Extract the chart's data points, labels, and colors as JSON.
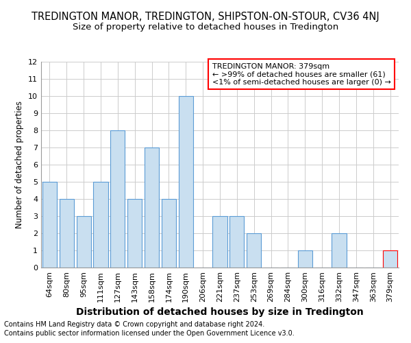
{
  "title": "TREDINGTON MANOR, TREDINGTON, SHIPSTON-ON-STOUR, CV36 4NJ",
  "subtitle": "Size of property relative to detached houses in Tredington",
  "xlabel": "Distribution of detached houses by size in Tredington",
  "ylabel": "Number of detached properties",
  "categories": [
    "64sqm",
    "80sqm",
    "95sqm",
    "111sqm",
    "127sqm",
    "143sqm",
    "158sqm",
    "174sqm",
    "190sqm",
    "206sqm",
    "221sqm",
    "237sqm",
    "253sqm",
    "269sqm",
    "284sqm",
    "300sqm",
    "316sqm",
    "332sqm",
    "347sqm",
    "363sqm",
    "379sqm"
  ],
  "values": [
    5,
    4,
    3,
    5,
    8,
    4,
    7,
    4,
    10,
    0,
    3,
    3,
    2,
    0,
    0,
    1,
    0,
    2,
    0,
    0,
    1
  ],
  "bar_color": "#c9dff0",
  "bar_edge_color": "#5b9bd5",
  "highlight_index": 20,
  "highlight_bar_edge_color": "#ff0000",
  "annotation_title": "TREDINGTON MANOR: 379sqm",
  "annotation_line1": "← >99% of detached houses are smaller (61)",
  "annotation_line2": "<1% of semi-detached houses are larger (0) →",
  "annotation_box_edge_color": "#ff0000",
  "ylim": [
    0,
    12
  ],
  "yticks": [
    0,
    1,
    2,
    3,
    4,
    5,
    6,
    7,
    8,
    9,
    10,
    11,
    12
  ],
  "footnote1": "Contains HM Land Registry data © Crown copyright and database right 2024.",
  "footnote2": "Contains public sector information licensed under the Open Government Licence v3.0.",
  "grid_color": "#cccccc",
  "background_color": "#ffffff",
  "title_fontsize": 10.5,
  "subtitle_fontsize": 9.5,
  "xlabel_fontsize": 10,
  "ylabel_fontsize": 8.5,
  "tick_fontsize": 8,
  "annotation_fontsize": 8,
  "footnote_fontsize": 7
}
